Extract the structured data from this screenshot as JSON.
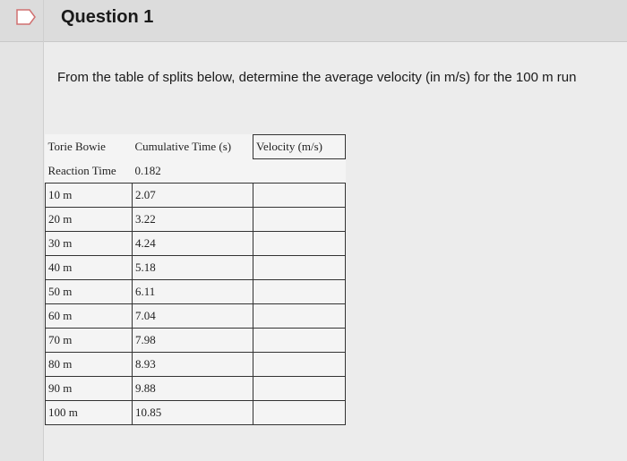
{
  "header": {
    "title": "Question 1"
  },
  "prompt": "From the table of splits below, determine the average velocity (in m/s) for the 100 m run",
  "table": {
    "columns": [
      "Torie Bowie",
      "Cumulative Time (s)",
      "Velocity (m/s)"
    ],
    "rows": [
      [
        "Reaction Time",
        "0.182"
      ],
      [
        "10 m",
        "2.07"
      ],
      [
        "20 m",
        "3.22"
      ],
      [
        "30 m",
        "4.24"
      ],
      [
        "40 m",
        "5.18"
      ],
      [
        "50 m",
        "6.11"
      ],
      [
        "60 m",
        "7.04"
      ],
      [
        "70 m",
        "7.98"
      ],
      [
        "80 m",
        "8.93"
      ],
      [
        "90 m",
        "9.88"
      ],
      [
        "100 m",
        "10.85"
      ]
    ]
  }
}
